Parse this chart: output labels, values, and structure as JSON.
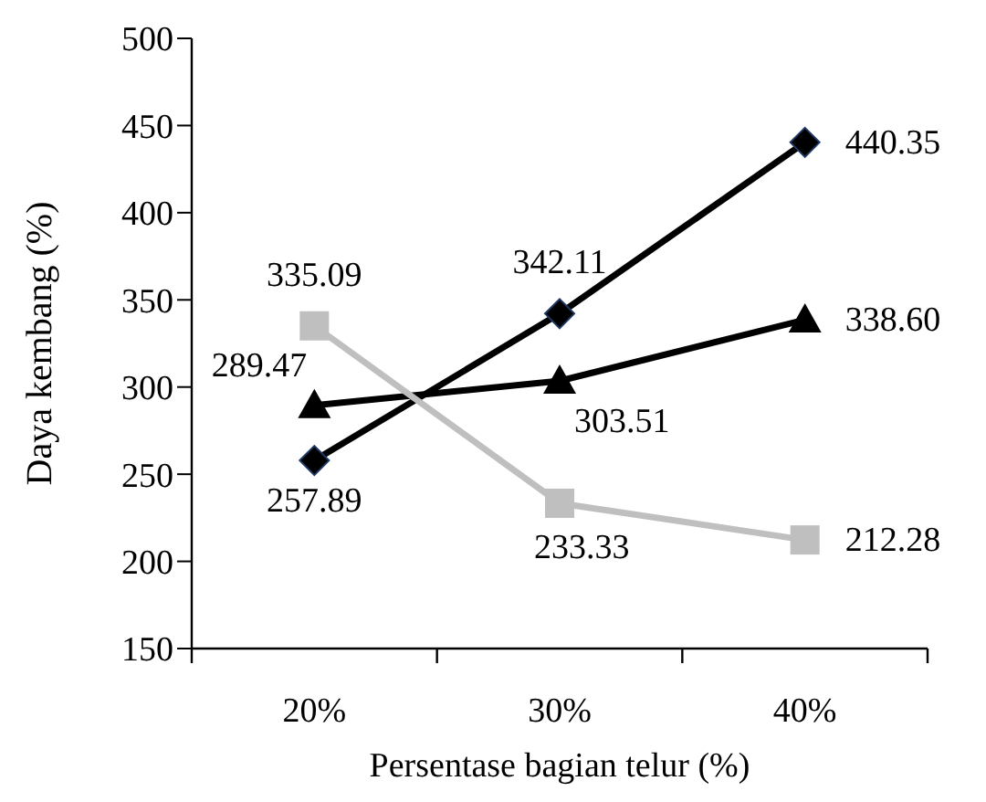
{
  "chart_data": {
    "type": "line",
    "xlabel": "Persentase bagian telur (%)",
    "ylabel": "Daya kembang (%)",
    "categories": [
      "20%",
      "30%",
      "40%"
    ],
    "ylim": [
      150,
      500
    ],
    "yticks": [
      150,
      200,
      250,
      300,
      350,
      400,
      450,
      500
    ],
    "series": [
      {
        "color": "#000000",
        "marker": "diamond",
        "values": [
          257.89,
          342.11,
          440.35
        ],
        "value_labels": [
          "257.89",
          "342.11",
          "440.35"
        ]
      },
      {
        "color": "#000000",
        "marker": "triangle",
        "values": [
          289.47,
          303.51,
          338.6
        ],
        "value_labels": [
          "289.47",
          "303.51",
          "338.60"
        ]
      },
      {
        "color": "#bfbfbf",
        "marker": "square",
        "values": [
          335.09,
          233.33,
          212.28
        ],
        "value_labels": [
          "335.09",
          "233.33",
          "212.28"
        ]
      }
    ]
  }
}
